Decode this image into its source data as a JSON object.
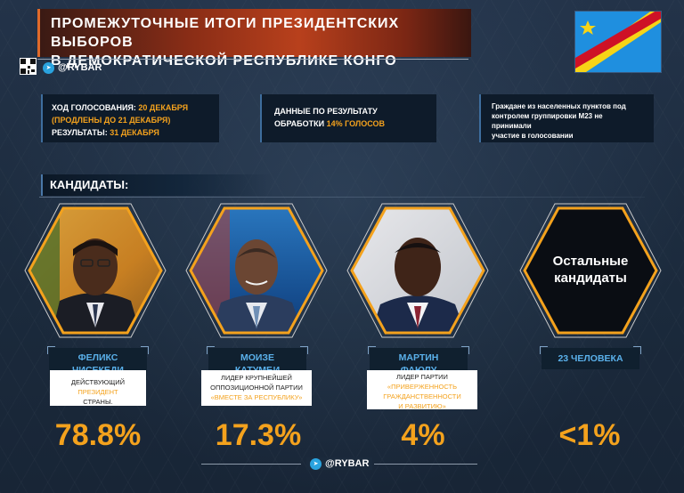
{
  "header": {
    "title_line1": "ПРОМЕЖУТОЧНЫЕ ИТОГИ ПРЕЗИДЕНТСКИХ ВЫБОРОВ",
    "title_line2": "В ДЕМОКРАТИЧЕСКОЙ РЕСПУБЛИКЕ КОНГО",
    "handle": "@RYBAR"
  },
  "info": {
    "voting_label": "ХОД ГОЛОСОВАНИЯ:",
    "voting_date": "20 ДЕКАБРЯ",
    "voting_extension": "(ПРОДЛЕНЫ ДО 21 ДЕКАБРЯ)",
    "results_label": "РЕЗУЛЬТАТЫ:",
    "results_date": "31 ДЕКАБРЯ",
    "data_line1": "ДАННЫЕ ПО РЕЗУЛЬТАТУ",
    "data_line2_prefix": "ОБРАБОТКИ",
    "data_line2_value": "14% ГОЛОСОВ",
    "note_line1": "Граждане из населенных пунктов под",
    "note_line2": "контролем группировки М23 не принимали",
    "note_line3": "участие в голосовании"
  },
  "section_title": "КАНДИДАТЫ:",
  "candidates": [
    {
      "name_line1": "ФЕЛИКС",
      "name_line2": "ЧИСЕКЕДИ",
      "desc_a": "ДЕЙСТВУЮЩИЙ",
      "desc_b": "ПРЕЗИДЕНТ",
      "desc_c": "СТРАНЫ.",
      "percent": "78.8%"
    },
    {
      "name_line1": "МОИЗЕ",
      "name_line2": "КАТУМБИ",
      "desc_a": "ЛИДЕР КРУПНЕЙШЕЙ",
      "desc_b": "ОППОЗИЦИОННОЙ ПАРТИИ",
      "desc_c": "«ВМЕСТЕ ЗА РЕСПУБЛИКУ»",
      "percent": "17.3%"
    },
    {
      "name_line1": "МАРТИН",
      "name_line2": "ФАЮЛУ",
      "desc_a": "ЛИДЕР ПАРТИИ",
      "desc_b": "«ПРИВЕРЖЕННОСТЬ",
      "desc_c": "ГРАЖДАНСТВЕННОСТИ",
      "desc_d": "И РАЗВИТИЮ»",
      "percent": "4%"
    },
    {
      "hex_line1": "Остальные",
      "hex_line2": "кандидаты",
      "count": "23 ЧЕЛОВЕКА",
      "percent": "<1%"
    }
  ],
  "footer": {
    "handle": "@RYBAR"
  },
  "colors": {
    "accent": "#f4a21d",
    "name_blue": "#5ab0ea",
    "background": "#1c2b3e"
  }
}
